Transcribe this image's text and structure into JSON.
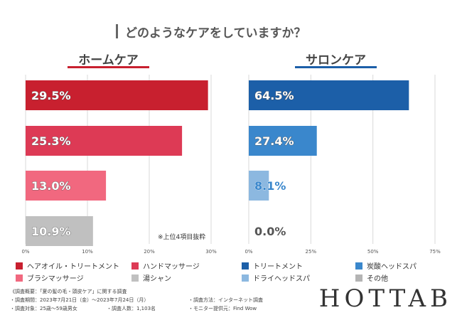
{
  "title": "どのようなケアをしていますか？",
  "colors": {
    "home_accent": "#c8202f",
    "salon_accent": "#1c5fa8",
    "gridline": "#d9d9d9",
    "home_series": [
      "#c8202f",
      "#dd3a55",
      "#f1687f",
      "#c0c0c0"
    ],
    "salon_series": [
      "#1c5fa8",
      "#3a87cc",
      "#8cb8e0",
      "#b4b4b4"
    ]
  },
  "chart_data": [
    {
      "type": "bar",
      "orientation": "horizontal",
      "title": "ホームケア",
      "categories": [
        "ヘアオイル・トリートメント",
        "ハンドマッサージ",
        "ブラシマッサージ",
        "湯シャン"
      ],
      "values": [
        29.5,
        25.3,
        13.0,
        10.9
      ],
      "value_labels": [
        "29.5%",
        "25.3%",
        "13.0%",
        "10.9%"
      ],
      "xlim": [
        0,
        30
      ],
      "ticks": [
        0,
        10,
        20,
        30
      ],
      "tick_labels": [
        "0%",
        "10%",
        "20%",
        "30%"
      ],
      "grid": true,
      "annotation": "※上位4項目抜粋"
    },
    {
      "type": "bar",
      "orientation": "horizontal",
      "title": "サロンケア",
      "categories": [
        "トリートメント",
        "炭酸ヘッドスパ",
        "ドライヘッドスパ",
        "その他"
      ],
      "values": [
        64.5,
        27.4,
        8.1,
        0.0
      ],
      "value_labels": [
        "64.5%",
        "27.4%",
        "8.1%",
        "0.0%"
      ],
      "xlim": [
        0,
        75
      ],
      "ticks": [
        0,
        25,
        50,
        75
      ],
      "tick_labels": [
        "0%",
        "25%",
        "50%",
        "75%"
      ],
      "grid": true
    }
  ],
  "legend_home": [
    "ヘアオイル・トリートメント",
    "ハンドマッサージ",
    "ブラシマッサージ",
    "湯シャン"
  ],
  "legend_salon": [
    "トリートメント",
    "炭酸ヘッドスパ",
    "ドライヘッドスパ",
    "その他"
  ],
  "footer": {
    "outline": "《調査概要：「夏の髪の毛・頭皮ケア」に関する調査",
    "period": "・調査期間：2023年7月21日（金）～2023年7月24日（月）",
    "method": "・調査方法：インターネット調査",
    "target": "・調査対象：25歳～59歳男女",
    "count": "・調査人数：1,103名",
    "provider": "・モニター提供元：Find Wow"
  },
  "brand": "HOTTAB"
}
